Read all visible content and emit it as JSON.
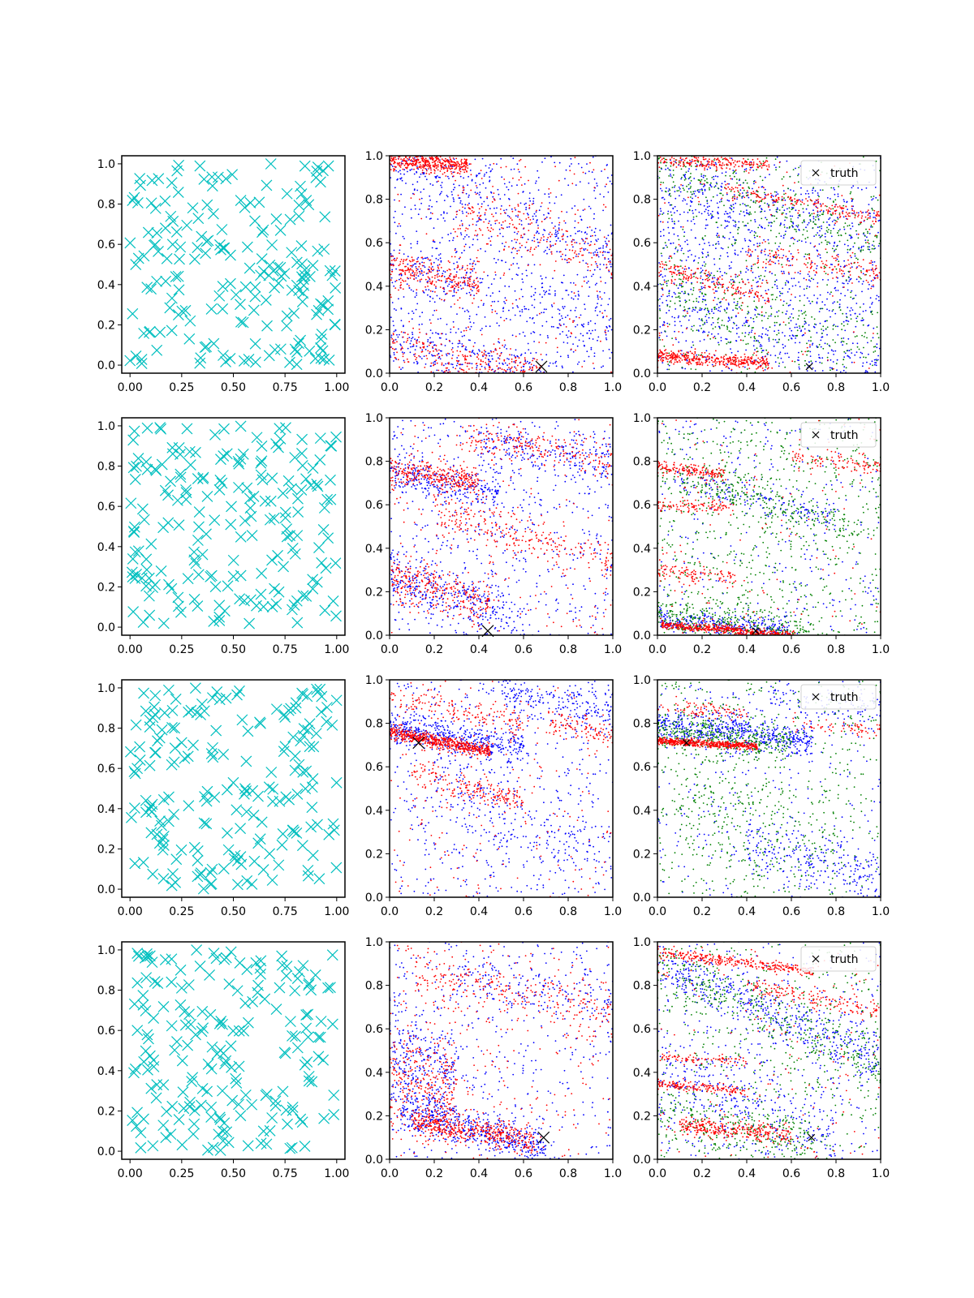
{
  "legend_label": "truth",
  "colors": {
    "candidates": "#00bfbf",
    "blue": "#0000ff",
    "red": "#ff0000",
    "green": "#008000",
    "truth": "#000000",
    "axes": "#000000"
  },
  "chart_data": [
    {
      "type": "scatter",
      "row": 1,
      "col": 1,
      "marker": "x",
      "color": "cyan",
      "n_points": 200,
      "xlim": [
        -0.04,
        1.04
      ],
      "ylim": [
        -0.04,
        1.04
      ],
      "xticks": [
        "0.00",
        "0.25",
        "0.50",
        "0.75",
        "1.00"
      ],
      "yticks": [
        "0.0",
        "0.2",
        "0.4",
        "0.6",
        "0.8",
        "1.0"
      ]
    },
    {
      "type": "scatter",
      "row": 1,
      "col": 2,
      "marker": ".",
      "series_colors": [
        "blue",
        "red"
      ],
      "xlim": [
        0,
        1
      ],
      "ylim": [
        0,
        1
      ],
      "xticks": [
        "0.0",
        "0.2",
        "0.4",
        "0.6",
        "0.8",
        "1.0"
      ],
      "yticks": [
        "0.0",
        "0.2",
        "0.4",
        "0.6",
        "0.8",
        "1.0"
      ],
      "truth": [
        0.68,
        0.03
      ]
    },
    {
      "type": "scatter",
      "row": 1,
      "col": 3,
      "marker": ".",
      "series_colors": [
        "blue",
        "green",
        "red"
      ],
      "xlim": [
        0,
        1
      ],
      "ylim": [
        0,
        1
      ],
      "xticks": [
        "0.0",
        "0.2",
        "0.4",
        "0.6",
        "0.8",
        "1.0"
      ],
      "yticks": [
        "0.0",
        "0.2",
        "0.4",
        "0.6",
        "0.8",
        "1.0"
      ],
      "truth": [
        0.68,
        0.03
      ],
      "legend": "upper right"
    },
    {
      "type": "scatter",
      "row": 2,
      "col": 1,
      "marker": "x",
      "color": "cyan",
      "n_points": 200,
      "xlim": [
        -0.04,
        1.04
      ],
      "ylim": [
        -0.04,
        1.04
      ],
      "xticks": [
        "0.00",
        "0.25",
        "0.50",
        "0.75",
        "1.00"
      ],
      "yticks": [
        "0.0",
        "0.2",
        "0.4",
        "0.6",
        "0.8",
        "1.0"
      ]
    },
    {
      "type": "scatter",
      "row": 2,
      "col": 2,
      "marker": ".",
      "series_colors": [
        "blue",
        "red"
      ],
      "xlim": [
        0,
        1
      ],
      "ylim": [
        0,
        1
      ],
      "xticks": [
        "0.0",
        "0.2",
        "0.4",
        "0.6",
        "0.8",
        "1.0"
      ],
      "yticks": [
        "0.0",
        "0.2",
        "0.4",
        "0.6",
        "0.8",
        "1.0"
      ],
      "truth": [
        0.44,
        0.02
      ]
    },
    {
      "type": "scatter",
      "row": 2,
      "col": 3,
      "marker": ".",
      "series_colors": [
        "blue",
        "green",
        "red"
      ],
      "xlim": [
        0,
        1
      ],
      "ylim": [
        0,
        1
      ],
      "xticks": [
        "0.0",
        "0.2",
        "0.4",
        "0.6",
        "0.8",
        "1.0"
      ],
      "yticks": [
        "0.0",
        "0.2",
        "0.4",
        "0.6",
        "0.8",
        "1.0"
      ],
      "truth": [
        0.44,
        0.02
      ],
      "legend": "upper right"
    },
    {
      "type": "scatter",
      "row": 3,
      "col": 1,
      "marker": "x",
      "color": "cyan",
      "n_points": 200,
      "xlim": [
        -0.04,
        1.04
      ],
      "ylim": [
        -0.04,
        1.04
      ],
      "xticks": [
        "0.00",
        "0.25",
        "0.50",
        "0.75",
        "1.00"
      ],
      "yticks": [
        "0.0",
        "0.2",
        "0.4",
        "0.6",
        "0.8",
        "1.0"
      ]
    },
    {
      "type": "scatter",
      "row": 3,
      "col": 2,
      "marker": ".",
      "series_colors": [
        "blue",
        "red"
      ],
      "xlim": [
        0,
        1
      ],
      "ylim": [
        0,
        1
      ],
      "xticks": [
        "0.0",
        "0.2",
        "0.4",
        "0.6",
        "0.8",
        "1.0"
      ],
      "yticks": [
        "0.0",
        "0.2",
        "0.4",
        "0.6",
        "0.8",
        "1.0"
      ],
      "truth": [
        0.13,
        0.71
      ]
    },
    {
      "type": "scatter",
      "row": 3,
      "col": 3,
      "marker": ".",
      "series_colors": [
        "blue",
        "green",
        "red"
      ],
      "xlim": [
        0,
        1
      ],
      "ylim": [
        0,
        1
      ],
      "xticks": [
        "0.0",
        "0.2",
        "0.4",
        "0.6",
        "0.8",
        "1.0"
      ],
      "yticks": [
        "0.0",
        "0.2",
        "0.4",
        "0.6",
        "0.8",
        "1.0"
      ],
      "truth": [
        0.13,
        0.71
      ],
      "legend": "upper right"
    },
    {
      "type": "scatter",
      "row": 4,
      "col": 1,
      "marker": "x",
      "color": "cyan",
      "n_points": 200,
      "xlim": [
        -0.04,
        1.04
      ],
      "ylim": [
        -0.04,
        1.04
      ],
      "xticks": [
        "0.00",
        "0.25",
        "0.50",
        "0.75",
        "1.00"
      ],
      "yticks": [
        "0.0",
        "0.2",
        "0.4",
        "0.6",
        "0.8",
        "1.0"
      ]
    },
    {
      "type": "scatter",
      "row": 4,
      "col": 2,
      "marker": ".",
      "series_colors": [
        "blue",
        "red"
      ],
      "xlim": [
        0,
        1
      ],
      "ylim": [
        0,
        1
      ],
      "xticks": [
        "0.0",
        "0.2",
        "0.4",
        "0.6",
        "0.8",
        "1.0"
      ],
      "yticks": [
        "0.0",
        "0.2",
        "0.4",
        "0.6",
        "0.8",
        "1.0"
      ],
      "truth": [
        0.69,
        0.1
      ]
    },
    {
      "type": "scatter",
      "row": 4,
      "col": 3,
      "marker": ".",
      "series_colors": [
        "blue",
        "green",
        "red"
      ],
      "xlim": [
        0,
        1
      ],
      "ylim": [
        0,
        1
      ],
      "xticks": [
        "0.0",
        "0.2",
        "0.4",
        "0.6",
        "0.8",
        "1.0"
      ],
      "yticks": [
        "0.0",
        "0.2",
        "0.4",
        "0.6",
        "0.8",
        "1.0"
      ],
      "truth": [
        0.69,
        0.1
      ],
      "legend": "upper right"
    }
  ]
}
